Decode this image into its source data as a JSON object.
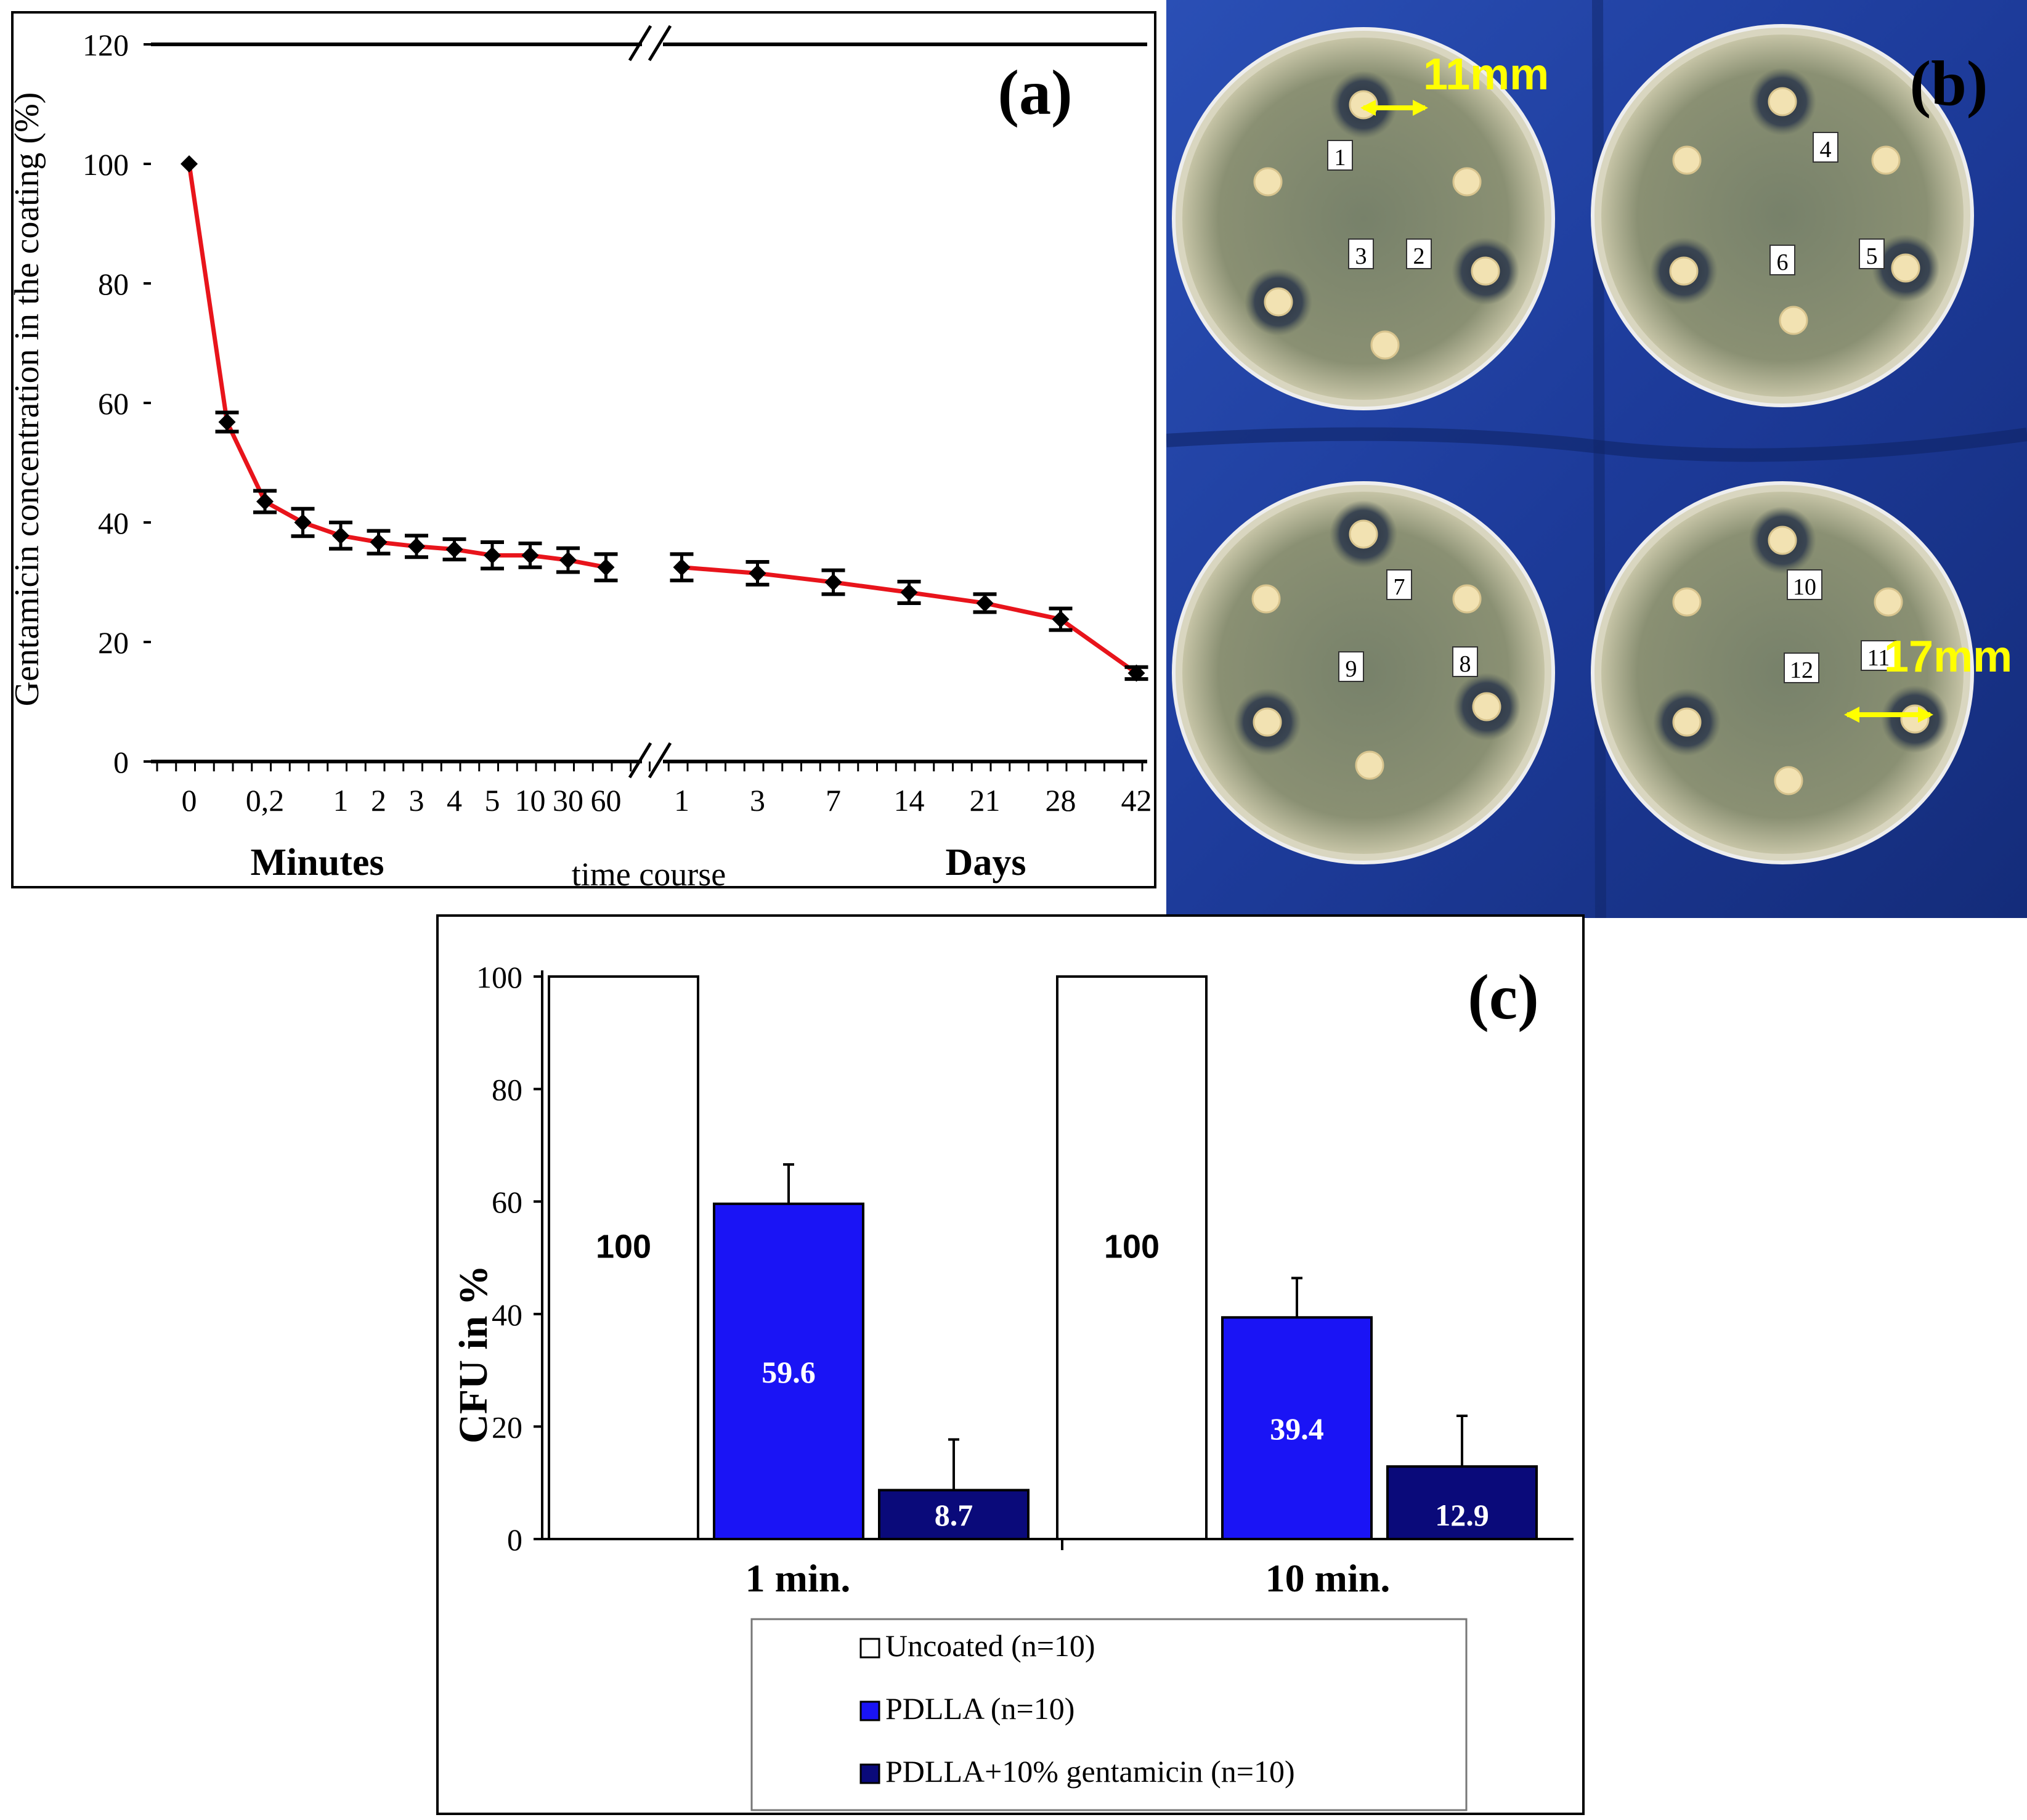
{
  "chart_data": [
    {
      "panel": "(a)",
      "type": "line",
      "ylabel": "Gentamicin concentration in the coating (%)",
      "xlabel": "time course",
      "ylim": [
        0,
        120
      ],
      "yticks": [
        0,
        20,
        40,
        60,
        80,
        100,
        120
      ],
      "group_labels": [
        "Minutes",
        "Days"
      ],
      "x_tick_labels": [
        "0",
        "0,2",
        "1",
        "2",
        "3",
        "4",
        "5",
        "10",
        "30",
        "60",
        "1",
        "3",
        "7",
        "14",
        "21",
        "28",
        "42"
      ],
      "series": [
        {
          "name": "Minutes",
          "color": "#e8141b",
          "points": [
            {
              "x": 0,
              "y": 100,
              "err": 0
            },
            {
              "x": 1,
              "y": 56.8,
              "err": 1.6
            },
            {
              "x": 2,
              "y": 43.5,
              "err": 1.8
            },
            {
              "x": 3,
              "y": 40.0,
              "err": 2.3
            },
            {
              "x": 4,
              "y": 37.8,
              "err": 2.2
            },
            {
              "x": 5,
              "y": 36.7,
              "err": 1.9
            },
            {
              "x": 6,
              "y": 36.0,
              "err": 1.8
            },
            {
              "x": 7,
              "y": 35.5,
              "err": 1.7
            },
            {
              "x": 8,
              "y": 34.5,
              "err": 2.2
            },
            {
              "x": 9,
              "y": 34.5,
              "err": 2.0
            },
            {
              "x": 10,
              "y": 33.7,
              "err": 2.0
            },
            {
              "x": 11,
              "y": 32.5,
              "err": 2.2
            }
          ]
        },
        {
          "name": "Days",
          "color": "#e8141b",
          "points": [
            {
              "x": 13,
              "y": 32.5,
              "err": 2.2
            },
            {
              "x": 15,
              "y": 31.5,
              "err": 1.9
            },
            {
              "x": 17,
              "y": 30.0,
              "err": 2.0
            },
            {
              "x": 19,
              "y": 28.3,
              "err": 1.8
            },
            {
              "x": 21,
              "y": 26.5,
              "err": 1.5
            },
            {
              "x": 23,
              "y": 23.8,
              "err": 1.8
            },
            {
              "x": 25,
              "y": 14.8,
              "err": 1.0
            }
          ]
        }
      ]
    },
    {
      "panel": "(c)",
      "type": "bar",
      "ylabel": "CFU in %",
      "ylim": [
        0,
        100
      ],
      "yticks": [
        0,
        20,
        40,
        60,
        80,
        100
      ],
      "categories": [
        "1 min.",
        "10 min."
      ],
      "series": [
        {
          "name": "Uncoated (n=10)",
          "color": "#ffffff",
          "values": [
            100,
            100
          ],
          "errors": [
            0,
            0
          ],
          "labels": [
            "100",
            "100"
          ]
        },
        {
          "name": "PDLLA (n=10)",
          "color": "#1a14f5",
          "values": [
            59.6,
            39.4
          ],
          "errors": [
            7,
            7
          ],
          "labels": [
            "59.6",
            "39.4"
          ]
        },
        {
          "name": "PDLLA+10% gentamicin (n=10)",
          "color": "#0a0a7a",
          "values": [
            8.7,
            12.9
          ],
          "errors": [
            9,
            9
          ],
          "labels": [
            "8.7",
            "12.9"
          ]
        }
      ]
    }
  ],
  "photo": {
    "panel_label": "(b)",
    "annotations": [
      "11mm",
      "17mm"
    ],
    "disc_labels": [
      "1",
      "2",
      "3",
      "4",
      "5",
      "6",
      "7",
      "8",
      "9",
      "10",
      "11",
      "12"
    ]
  },
  "colors": {
    "line": "#e8141b",
    "annotation": "#ffff00",
    "cloth": "#1e3c9c"
  }
}
